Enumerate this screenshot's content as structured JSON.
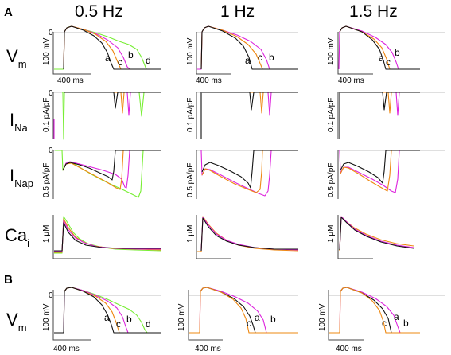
{
  "panels": {
    "A": "A",
    "B": "B"
  },
  "columns": [
    "0.5 Hz",
    "1 Hz",
    "1.5 Hz"
  ],
  "rows": [
    {
      "id": "Vm",
      "main": "V",
      "sub": "m",
      "scale": "100 mV",
      "zero": "0"
    },
    {
      "id": "INa",
      "main": "I",
      "sub": "Na",
      "scale": "0.1 pA/pF",
      "zero": "0"
    },
    {
      "id": "INap",
      "main": "I",
      "sub": "Nap",
      "scale": "0.5 pA/pF",
      "zero": "0"
    },
    {
      "id": "Cai",
      "main": "Ca",
      "sub": "i",
      "scale": "1 μM",
      "zero": ""
    },
    {
      "id": "VmB",
      "main": "V",
      "sub": "m",
      "scale": "100 mV",
      "zero": "0"
    }
  ],
  "time_scale": "400 ms",
  "trace_labels": {
    "A_col1": [
      "a",
      "b",
      "c",
      "d"
    ],
    "A_col2": [
      "a",
      "c",
      "b"
    ],
    "A_col3": [
      "a",
      "c",
      "b"
    ],
    "B_col1": [
      "a",
      "c",
      "b",
      "d"
    ],
    "B_col2": [
      "c",
      "a",
      "b"
    ],
    "B_col3": [
      "c",
      "a",
      "b"
    ]
  },
  "colors": {
    "a": "#111111",
    "b": "#dd22dd",
    "c": "#ee8811",
    "d": "#77ee33",
    "axis": "#444444",
    "zero_line": "#aaaaaa"
  }
}
